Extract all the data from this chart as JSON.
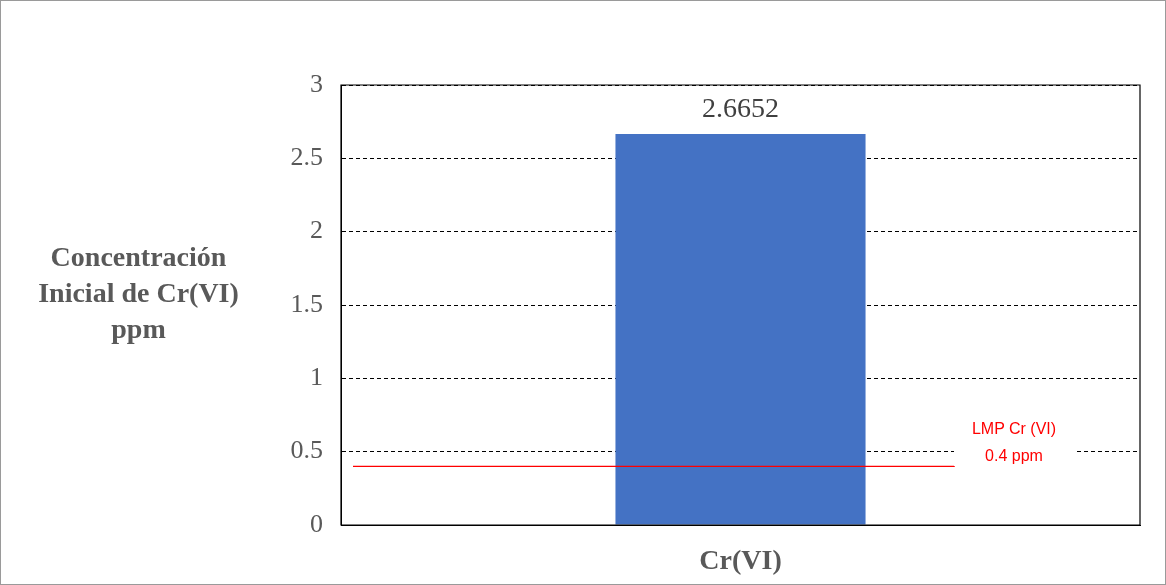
{
  "chart_data": {
    "type": "bar",
    "ylabel": "Concentración Inicial de Cr(VI) ppm",
    "categories": [
      "Cr(VI)"
    ],
    "values": [
      2.6652
    ],
    "color": "#4472c4",
    "ylim": [
      0,
      3
    ],
    "yticks": [
      0,
      0.5,
      1,
      1.5,
      2,
      2.5,
      3
    ],
    "grid": "y",
    "data_labels": true,
    "legend": false,
    "ref_lines": [
      {
        "axis": "y",
        "value": 0.4,
        "label": "LMP Cr (VI)\n0.4 ppm",
        "color": "#ff0000"
      }
    ]
  }
}
